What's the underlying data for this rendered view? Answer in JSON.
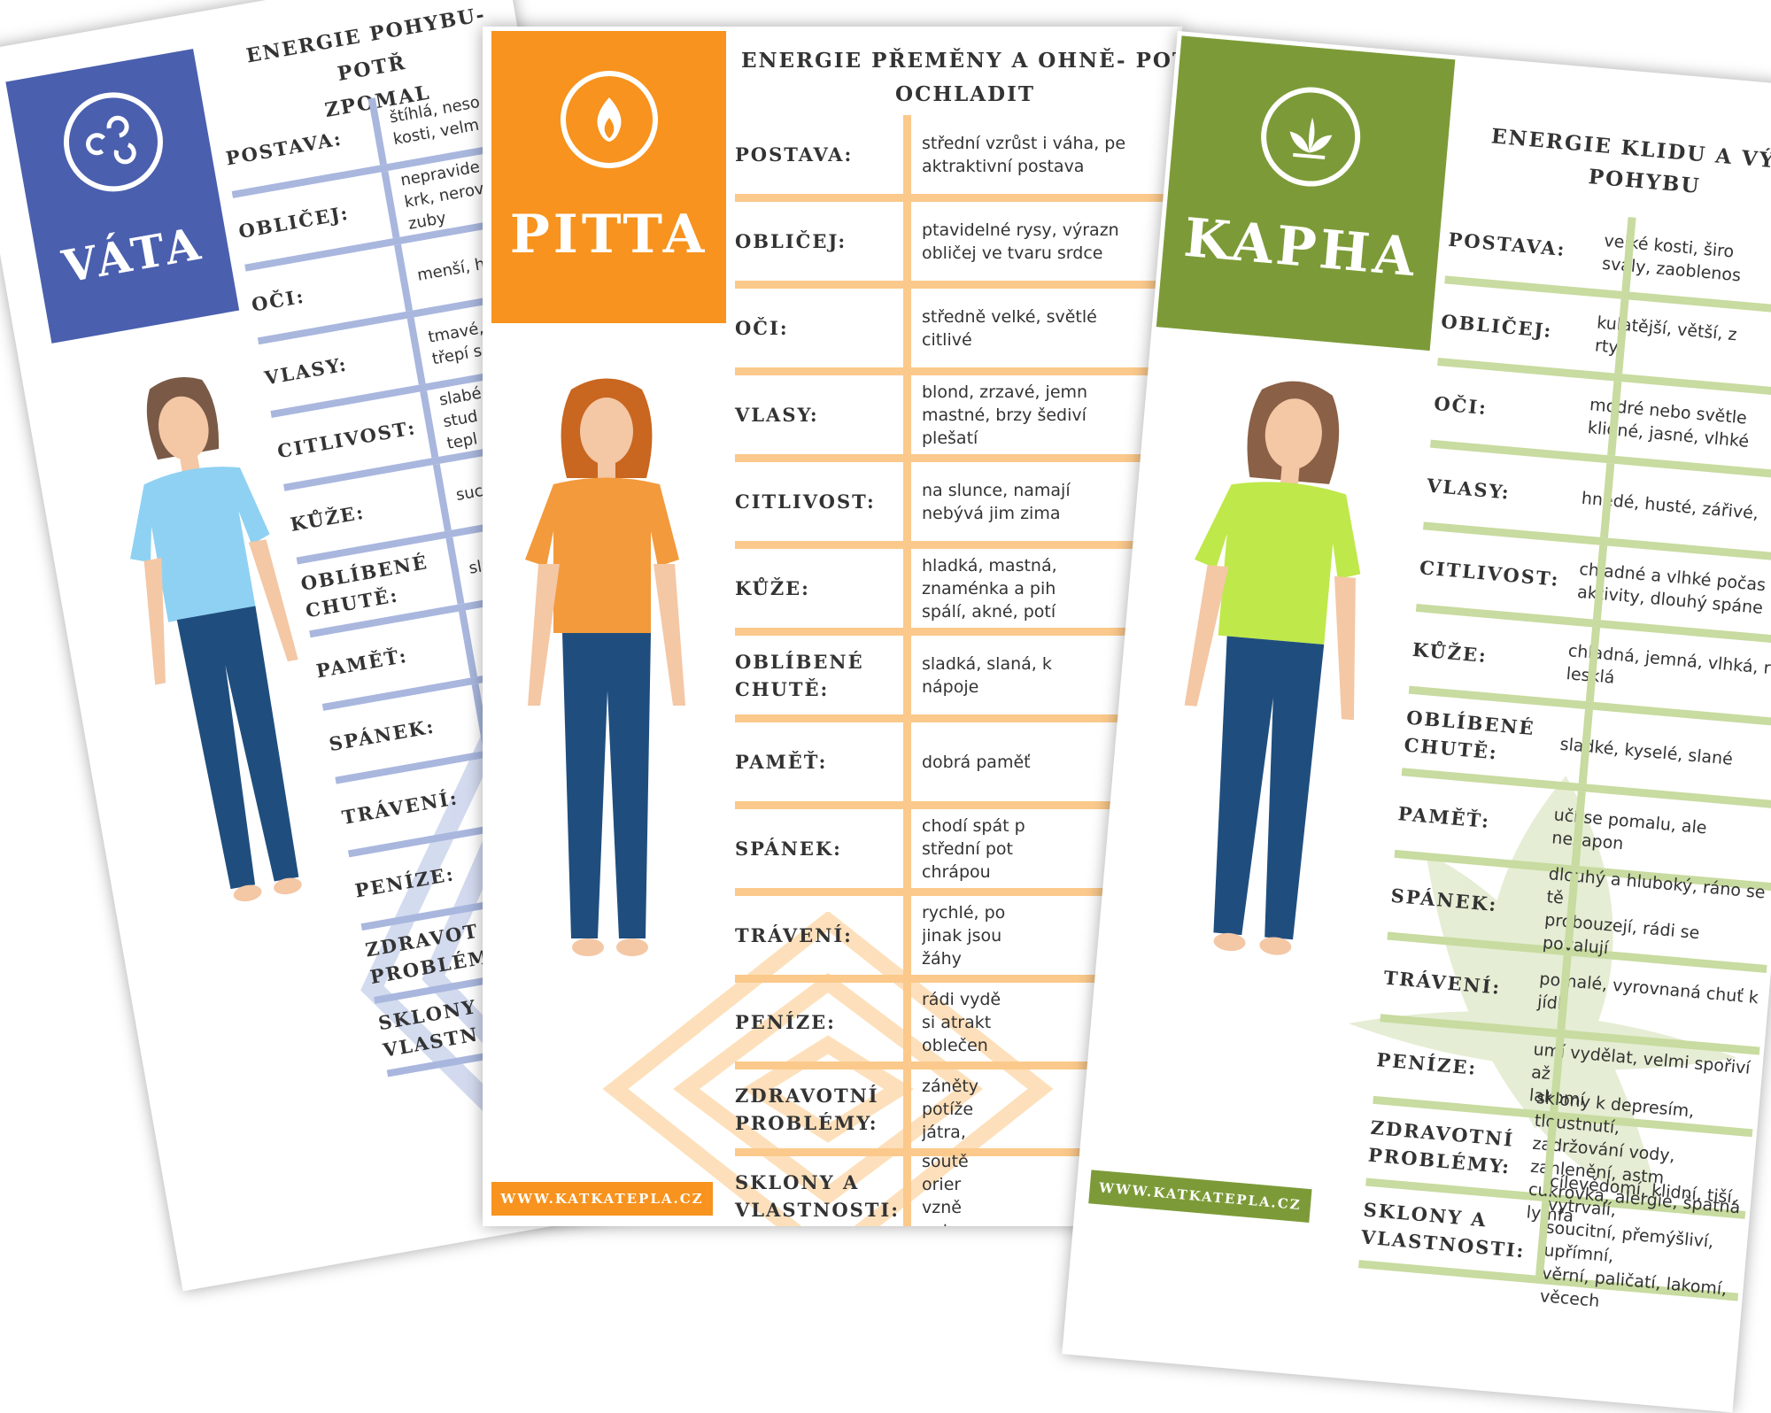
{
  "colors": {
    "vata": "#4a5fae",
    "pitta": "#f7931e",
    "pitta_lines": "#fbc98b",
    "kapha": "#7c9b38",
    "kapha_lines": "#c8dba0",
    "vata_lines": "#a9b7de"
  },
  "vata": {
    "name": "VÁTA",
    "emblem_icon": "triskelion-icon",
    "subtitle": "ENERGIE POHYBU- POTŘ\nZPOMAL",
    "rows": [
      {
        "label": "POSTAVA:",
        "value": "štíhlá, neso\nkosti, velm"
      },
      {
        "label": "OBLIČEJ:",
        "value": "nepravide\nkrk, nerov\nzuby"
      },
      {
        "label": "OČI:",
        "value": "menší, h"
      },
      {
        "label": "VLASY:",
        "value": "tmavé,\ntřepí s"
      },
      {
        "label": "CITLIVOST:",
        "value": "slabé\nstud\ntepl"
      },
      {
        "label": "KŮŽE:",
        "value": "suc"
      },
      {
        "label": "OBLÍBENÉ\nCHUTĚ:",
        "value": "sl"
      },
      {
        "label": "PAMĚŤ:",
        "value": ""
      },
      {
        "label": "SPÁNEK:",
        "value": ""
      },
      {
        "label": "TRÁVENÍ:",
        "value": ""
      },
      {
        "label": "PENÍZE:",
        "value": ""
      },
      {
        "label": "ZDRAVOT\nPROBLÉM",
        "value": ""
      },
      {
        "label": "SKLONY\nVLASTN",
        "value": ""
      }
    ]
  },
  "pitta": {
    "name": "PITTA",
    "emblem_icon": "flame-icon",
    "subtitle": "ENERGIE PŘEMĚNY A OHNĚ- POT\nOCHLADIT",
    "site": "WWW.KATKATEPLA.CZ",
    "rows": [
      {
        "label": "POSTAVA:",
        "value": "střední vzrůst i váha, pe\naktraktivní postava"
      },
      {
        "label": "OBLIČEJ:",
        "value": "ptavidelné rysy, výrazn\nobličej ve tvaru srdce"
      },
      {
        "label": "OČI:",
        "value": "středně velké, světlé\ncitlivé"
      },
      {
        "label": "VLASY:",
        "value": "blond, zrzavé, jemn\nmastné, brzy šediví\nplešatí"
      },
      {
        "label": "CITLIVOST:",
        "value": "na slunce, namají\nnebývá jim zima"
      },
      {
        "label": "KŮŽE:",
        "value": "hladká, mastná,\nznaménka a pih\nspálí, akné, potí"
      },
      {
        "label": "OBLÍBENÉ\nCHUTĚ:",
        "value": "sladká, slaná, k\nnápoje"
      },
      {
        "label": "PAMĚŤ:",
        "value": "dobrá paměť"
      },
      {
        "label": "SPÁNEK:",
        "value": "chodí spát p\nstřední pot\nchrápou"
      },
      {
        "label": "TRÁVENÍ:",
        "value": "rychlé, po\njinak jsou\nžáhy"
      },
      {
        "label": "PENÍZE:",
        "value": "rádi vydě\nsi atrakt\noblečen"
      },
      {
        "label": "ZDRAVOTNÍ\nPROBLÉMY:",
        "value": "záněty\npotíže\njátra,"
      },
      {
        "label": "SKLONY A\nVLASTNOSTI:",
        "value": "soutě\norier\nvzně\nnetr"
      }
    ]
  },
  "kapha": {
    "name": "KAPHA",
    "emblem_icon": "leaves-icon",
    "subtitle": "ENERGIE KLIDU A VÝŽI\nPOHYBU",
    "site": "WWW.KATKATEPLA.CZ",
    "rows": [
      {
        "label": "POSTAVA:",
        "value": "velké kosti, širo\nsvaly, zaoblenos"
      },
      {
        "label": "OBLIČEJ:",
        "value": "kulatější, větší, z\nrty"
      },
      {
        "label": "OČI:",
        "value": "modré nebo světle\nklidné, jasné, vlhké"
      },
      {
        "label": "VLASY:",
        "value": "hnědé, husté, zářivé,"
      },
      {
        "label": "CITLIVOST:",
        "value": "chladné a vlhké počas\naktivity, dlouhý spáne"
      },
      {
        "label": "KŮŽE:",
        "value": "chladná, jemná, vlhká, r\nlesklá"
      },
      {
        "label": "OBLÍBENÉ\nCHUTĚ:",
        "value": "sladké, kyselé, slané"
      },
      {
        "label": "PAMĚŤ:",
        "value": "učí se pomalu, ale nezapon"
      },
      {
        "label": "SPÁNEK:",
        "value": "dlouhý a hluboký, ráno se tě\nprobouzejí, rádi se povalují"
      },
      {
        "label": "TRÁVENÍ:",
        "value": "pomalé, vyrovnaná chuť k jídl"
      },
      {
        "label": "PENÍZE:",
        "value": "umí vydělat, velmi spořiví až\nlakomí"
      },
      {
        "label": "ZDRAVOTNÍ\nPROBLÉMY:",
        "value": "sklony k depresím, tloustnutí,\nzadržování vody, zahlenění, astm\ncukrovka, alergie, špatná lymfa"
      },
      {
        "label": "SKLONY A\nVLASTNOSTI:",
        "value": "cílevědomí, klidní, tiší, vytrvalí,\nsoucitní, přemýšliví, upřímní,\nvěrní, paličatí, lakomí,\nvěcech"
      }
    ]
  }
}
